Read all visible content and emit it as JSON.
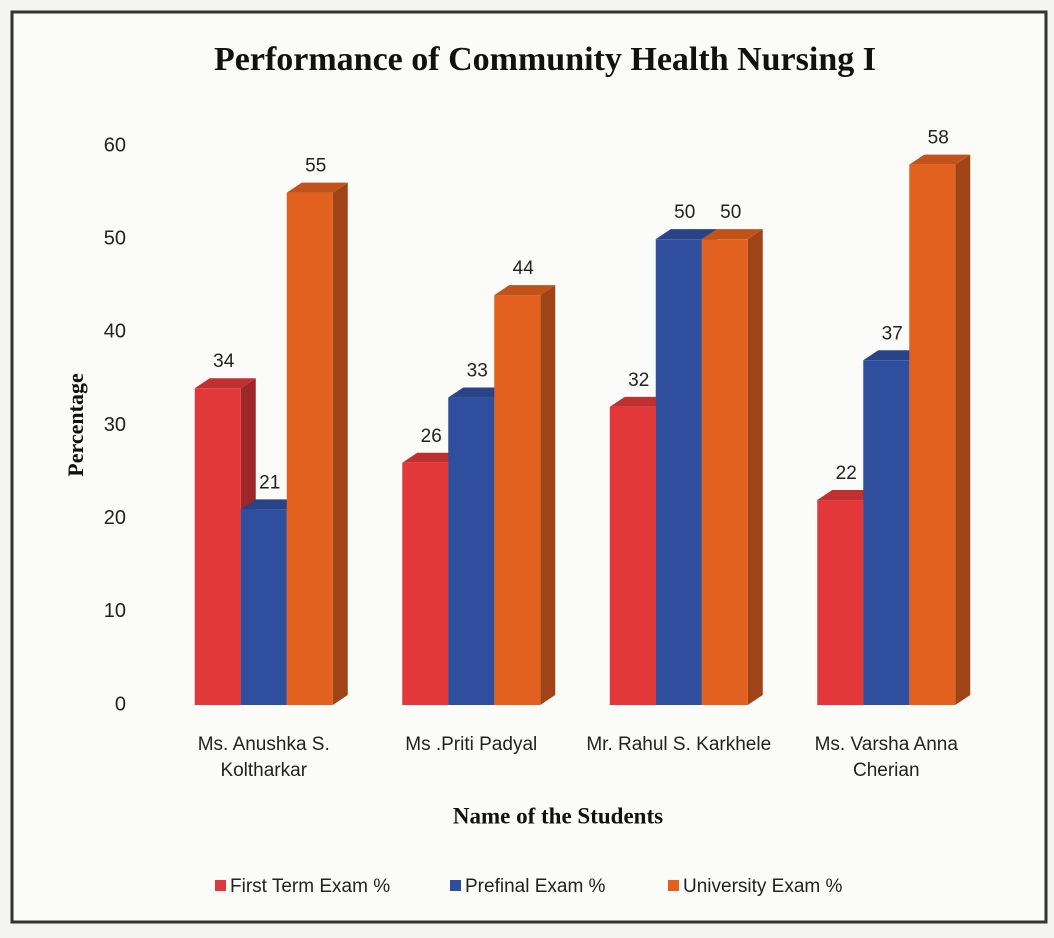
{
  "chart_data": {
    "type": "bar",
    "title": "Performance of Community Health Nursing I",
    "y_label": "Percentage",
    "x_label": "Name of the Students",
    "categories": [
      "Ms. Anushka S. Koltharkar",
      "Ms .Priti Padyal",
      "Mr. Rahul S. Karkhele",
      "Ms. Varsha Anna Cherian"
    ],
    "series": [
      {
        "name": "First Term Exam %",
        "color": "#e2383a",
        "values": [
          34,
          26,
          32,
          22
        ]
      },
      {
        "name": "Prefinal Exam %",
        "color": "#2f4f9e",
        "values": [
          21,
          33,
          50,
          37
        ]
      },
      {
        "name": "University Exam %",
        "color": "#e2611f",
        "values": [
          55,
          44,
          50,
          58
        ]
      }
    ],
    "ylim": [
      0,
      60
    ],
    "yticks": [
      0,
      10,
      20,
      30,
      40,
      50,
      60
    ],
    "grid": false,
    "legend": "bottom"
  }
}
